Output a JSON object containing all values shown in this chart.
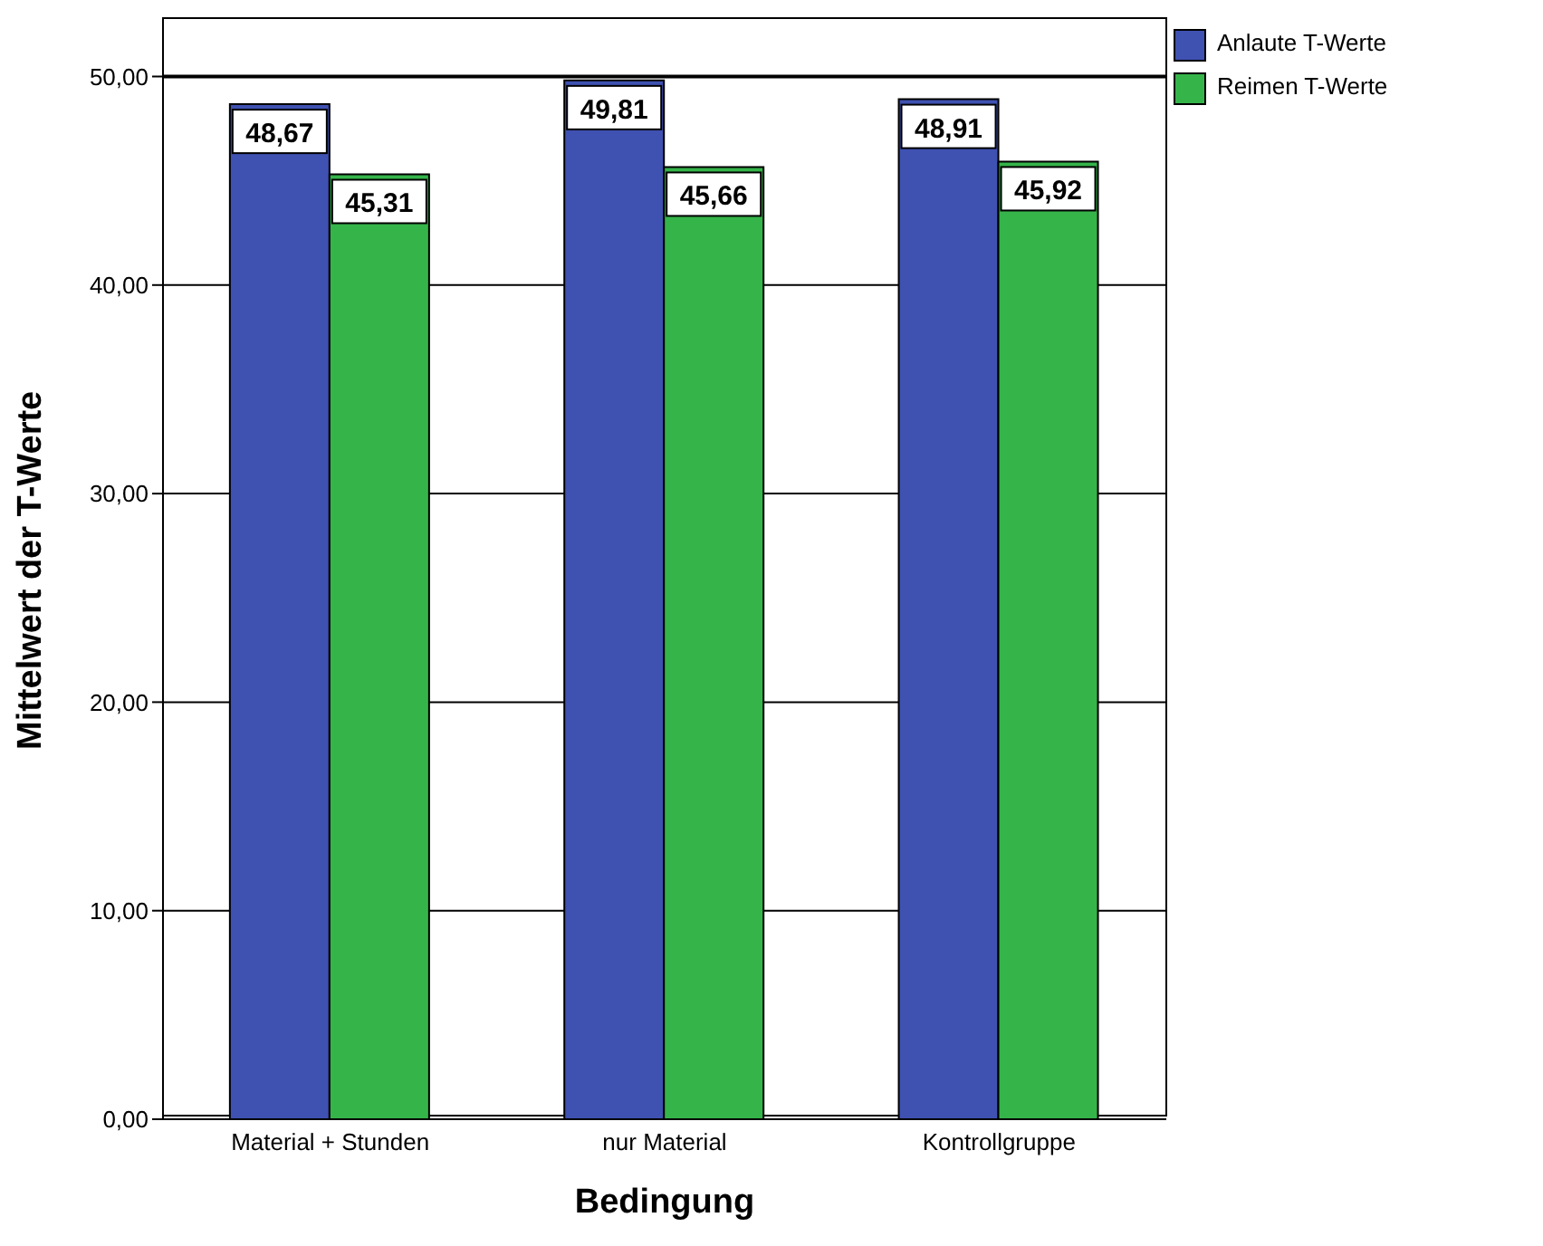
{
  "chart_data": {
    "type": "bar",
    "xlabel": "Bedingung",
    "ylabel": "Mittelwert der T-Werte",
    "categories": [
      "Material + Stunden",
      "nur Material",
      "Kontrollgruppe"
    ],
    "series": [
      {
        "name": "Anlaute T-Werte",
        "color": "#3f51b1",
        "values": [
          48.67,
          49.81,
          48.91
        ],
        "value_labels": [
          "48,67",
          "49,81",
          "48,91"
        ]
      },
      {
        "name": "Reimen T-Werte",
        "color": "#35b44a",
        "values": [
          45.31,
          45.66,
          45.92
        ],
        "value_labels": [
          "45,31",
          "45,66",
          "45,92"
        ]
      }
    ],
    "ylim": [
      0,
      52.8
    ],
    "yticks": [
      {
        "value": 0,
        "label": "0,00"
      },
      {
        "value": 10,
        "label": "10,00"
      },
      {
        "value": 20,
        "label": "20,00"
      },
      {
        "value": 30,
        "label": "30,00"
      },
      {
        "value": 40,
        "label": "40,00"
      },
      {
        "value": 50,
        "label": "50,00"
      }
    ],
    "grid": "y",
    "legend": "top right",
    "ref_lines": [
      {
        "axis": "y",
        "value": 50,
        "color": "#000000"
      }
    ]
  }
}
